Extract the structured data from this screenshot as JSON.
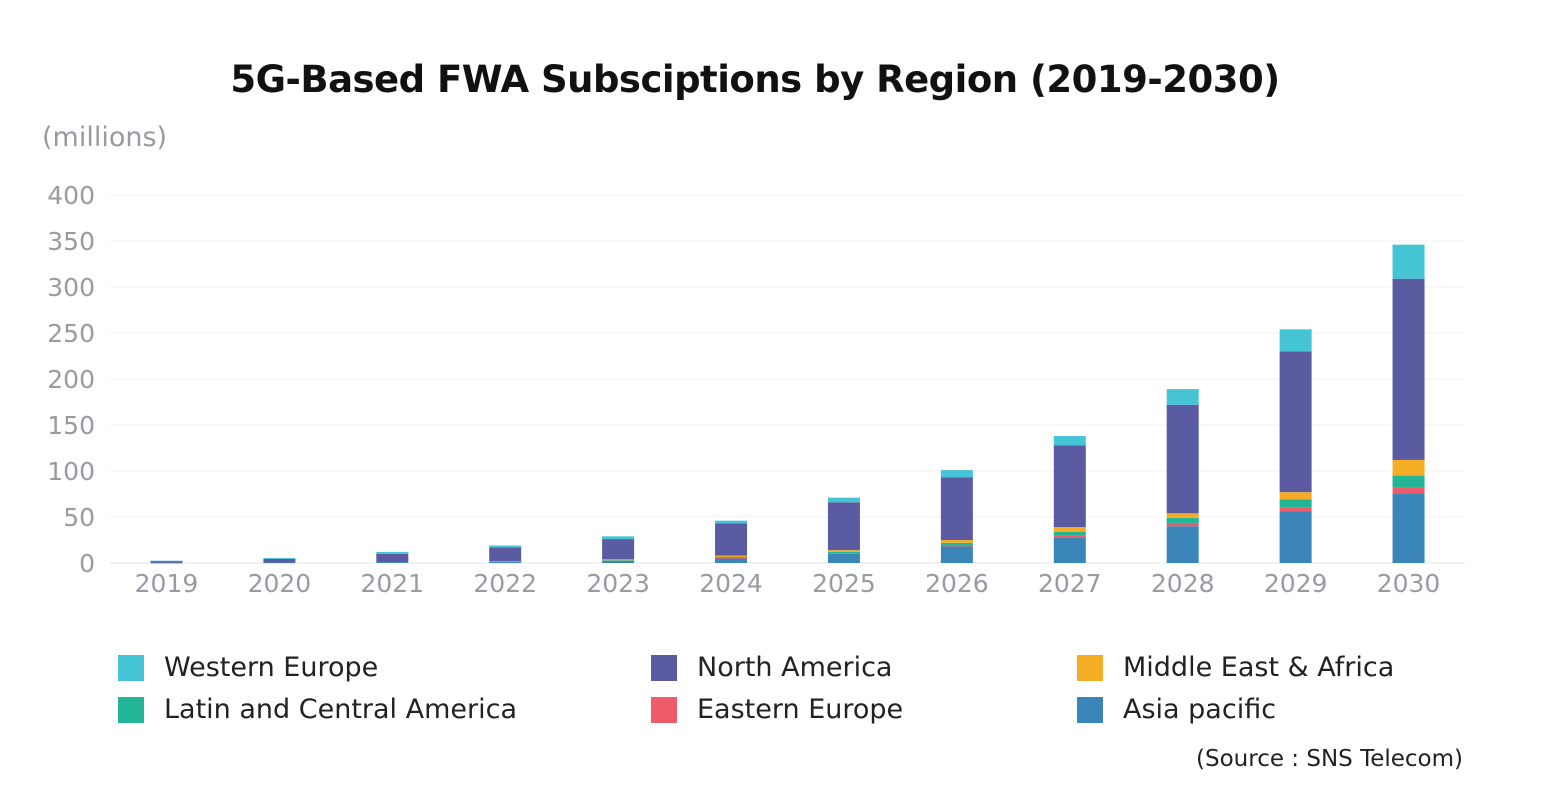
{
  "chart_data": {
    "type": "bar",
    "stacked": true,
    "title": "5G-Based FWA Subsciptions by Region (2019-2030)",
    "ylabel": "(millions)",
    "ylim": [
      0,
      400
    ],
    "yticks": [
      0,
      50,
      100,
      150,
      200,
      250,
      300,
      350,
      400
    ],
    "grid": true,
    "categories": [
      "2019",
      "2020",
      "2021",
      "2022",
      "2023",
      "2024",
      "2025",
      "2026",
      "2027",
      "2028",
      "2029",
      "2030"
    ],
    "series": [
      {
        "name": "Asia pacific",
        "color": "#3a86b8",
        "values": [
          0.2,
          0.5,
          1,
          1.5,
          2.5,
          5,
          10,
          18,
          28,
          40,
          56,
          75
        ]
      },
      {
        "name": "Eastern Europe",
        "color": "#ee5b6a",
        "values": [
          0,
          0,
          0,
          0,
          0,
          0.5,
          0.5,
          1,
          2,
          3,
          4,
          7
        ]
      },
      {
        "name": "Latin and Central America",
        "color": "#22b596",
        "values": [
          0,
          0,
          0,
          0.2,
          0.5,
          1,
          1.5,
          3,
          4,
          6,
          9,
          13
        ]
      },
      {
        "name": "Middle East & Africa",
        "color": "#f5ad25",
        "values": [
          0,
          0,
          0,
          0.3,
          1,
          1.5,
          2,
          3,
          5,
          5,
          8,
          17
        ]
      },
      {
        "name": "North America",
        "color": "#5b5ba2",
        "values": [
          2,
          4,
          9,
          15,
          22,
          35,
          52,
          68,
          89,
          118,
          153,
          197
        ]
      },
      {
        "name": "Western Europe",
        "color": "#45c4d6",
        "values": [
          0.3,
          1,
          2,
          2,
          3,
          3,
          5,
          8,
          10,
          17,
          24,
          37
        ]
      }
    ]
  },
  "legend": {
    "items": [
      {
        "name": "Western Europe",
        "color": "#45c4d6"
      },
      {
        "name": "North America",
        "color": "#5b5ba2"
      },
      {
        "name": "Middle East & Africa",
        "color": "#f5ad25"
      },
      {
        "name": "Latin and Central America",
        "color": "#22b596"
      },
      {
        "name": "Eastern Europe",
        "color": "#ee5b6a"
      },
      {
        "name": "Asia pacific",
        "color": "#3a86b8"
      }
    ]
  },
  "source": "(Source : SNS Telecom)"
}
